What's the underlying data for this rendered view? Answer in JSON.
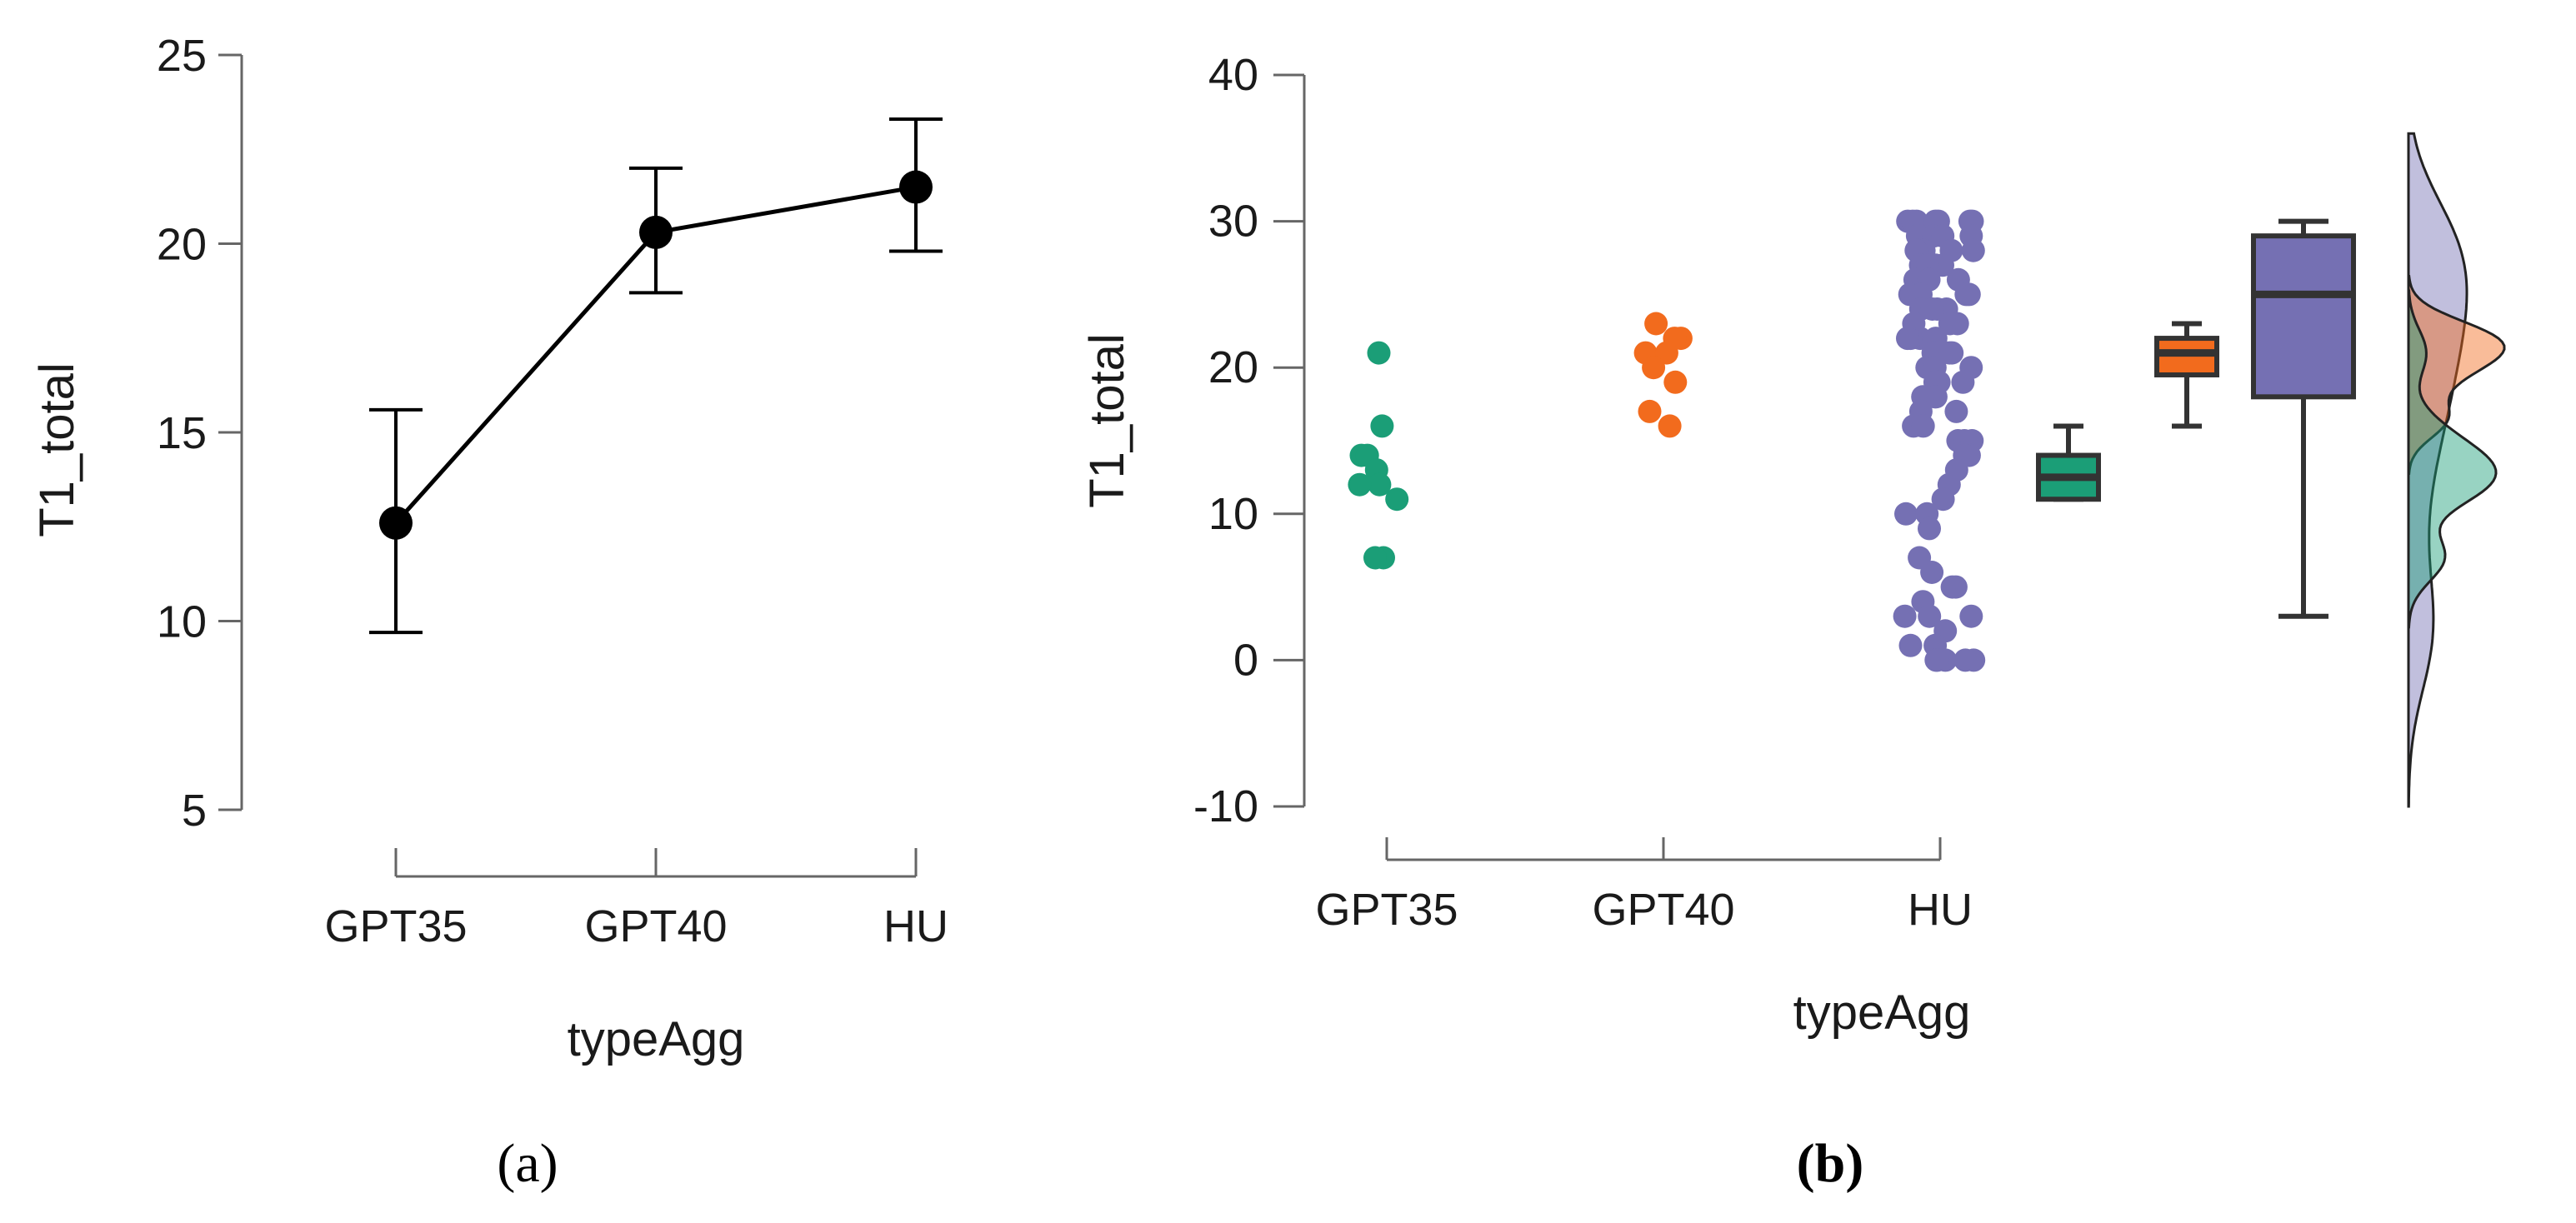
{
  "colors": {
    "axis": "#666666",
    "line": "#000000",
    "GPT35": "#1b9e77",
    "GPT40": "#f26b1d",
    "HU": "#7570b3",
    "box_edge": "#333333"
  },
  "panels": {
    "a": {
      "open": "(",
      "letter": "a",
      "close": ")"
    },
    "b": {
      "open": "(",
      "letter": "b",
      "close": ")"
    }
  },
  "chart_data": [
    {
      "type": "line",
      "categories": [
        "GPT35",
        "GPT40",
        "HU"
      ],
      "xlabel": "typeAgg",
      "ylabel": "T1_total",
      "ylim": [
        5,
        25
      ],
      "yticks": [
        5,
        10,
        15,
        20,
        25
      ],
      "mean": [
        12.6,
        20.3,
        21.5
      ],
      "ci_low": [
        9.7,
        18.7,
        19.8
      ],
      "ci_high": [
        15.6,
        22.0,
        23.3
      ],
      "grid": false
    },
    {
      "type": "scatter",
      "subtype": "raincloud",
      "categories": [
        "GPT35",
        "GPT40",
        "HU"
      ],
      "xlabel": "typeAgg",
      "ylabel": "T1_total",
      "ylim": [
        -10,
        40
      ],
      "yticks": [
        -10,
        0,
        10,
        20,
        30,
        40
      ],
      "grid": false,
      "points": {
        "GPT35": [
          21,
          16,
          14,
          14,
          13,
          12,
          12,
          11,
          7,
          7
        ],
        "GPT40": [
          23,
          22,
          22,
          21,
          21,
          20,
          19,
          17,
          16
        ],
        "HU": [
          30,
          30,
          30,
          30,
          30,
          30,
          30,
          29,
          29,
          29,
          29,
          28,
          28,
          28,
          28,
          27,
          27,
          27,
          27,
          26,
          26,
          26,
          26,
          25,
          25,
          25,
          25,
          24,
          24,
          24,
          24,
          23,
          23,
          23,
          22,
          22,
          22,
          22,
          21,
          21,
          21,
          20,
          20,
          20,
          19,
          19,
          19,
          18,
          18,
          18,
          17,
          17,
          16,
          16,
          15,
          15,
          15,
          14,
          14,
          13,
          12,
          11,
          10,
          10,
          9,
          7,
          6,
          5,
          5,
          4,
          3,
          3,
          3,
          2,
          1,
          1,
          0,
          0,
          0,
          0,
          0
        ]
      },
      "box": {
        "GPT35": {
          "min": 11,
          "q1": 11,
          "median": 12.5,
          "q3": 14,
          "max": 16
        },
        "GPT40": {
          "min": 16,
          "q1": 19.5,
          "median": 21,
          "q3": 22,
          "max": 23
        },
        "HU": {
          "min": 3,
          "q1": 18,
          "median": 25,
          "q3": 29,
          "max": 30
        }
      }
    }
  ]
}
